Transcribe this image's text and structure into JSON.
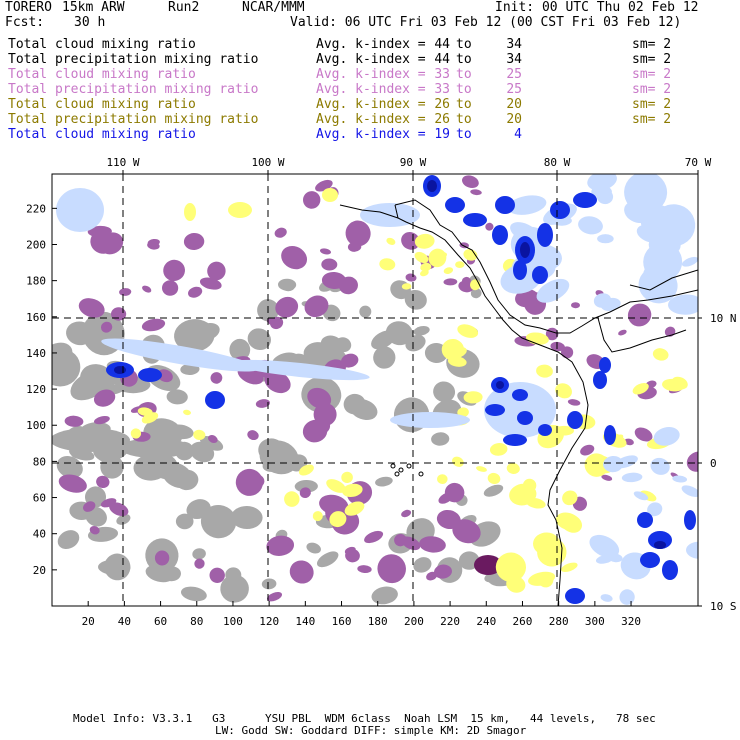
{
  "header": {
    "model": "TORERO",
    "resolution": "15km ARW",
    "run": "Run2",
    "org": "NCAR/MMM",
    "init": "Init: 00 UTC Thu 02 Feb 12",
    "fcst_label": "Fcst:",
    "fcst_value": "30 h",
    "valid": "Valid: 06 UTC Fri 03 Feb 12 (00 CST Fri 03 Feb 12)"
  },
  "legend": [
    {
      "name": "Total cloud mixing ratio",
      "avg_label": "Avg. k-index =",
      "k_hi": "44",
      "to": "to",
      "k_lo": "34",
      "sm": "sm= 2",
      "color": "#000000"
    },
    {
      "name": "Total precipitation mixing ratio",
      "avg_label": "Avg. k-index =",
      "k_hi": "44",
      "to": "to",
      "k_lo": "34",
      "sm": "sm= 2",
      "color": "#000000"
    },
    {
      "name": "Total cloud mixing ratio",
      "avg_label": "Avg. k-index =",
      "k_hi": "33",
      "to": "to",
      "k_lo": "25",
      "sm": "sm= 2",
      "color": "#c878c8"
    },
    {
      "name": "Total precipitation mixing ratio",
      "avg_label": "Avg. k-index =",
      "k_hi": "33",
      "to": "to",
      "k_lo": "25",
      "sm": "sm= 2",
      "color": "#c878c8"
    },
    {
      "name": "Total cloud mixing ratio",
      "avg_label": "Avg. k-index =",
      "k_hi": "26",
      "to": "to",
      "k_lo": "20",
      "sm": "sm= 2",
      "color": "#8c7a00"
    },
    {
      "name": "Total precipitation mixing ratio",
      "avg_label": "Avg. k-index =",
      "k_hi": "26",
      "to": "to",
      "k_lo": "20",
      "sm": "sm= 2",
      "color": "#8c7a00"
    },
    {
      "name": "Total cloud mixing ratio",
      "avg_label": "Avg. k-index =",
      "k_hi": "19",
      "to": "to",
      "k_lo": "4",
      "sm": "",
      "color": "#1414e6"
    }
  ],
  "map": {
    "lon_labels": [
      "110 W",
      "100 W",
      "90 W",
      "80 W",
      "70 W"
    ],
    "lat_labels": [
      "10 N",
      "0",
      "10 S"
    ],
    "x_ticks": [
      "20",
      "40",
      "60",
      "80",
      "100",
      "120",
      "140",
      "160",
      "180",
      "200",
      "220",
      "240",
      "260",
      "280",
      "300",
      "320"
    ],
    "y_ticks": [
      "20",
      "40",
      "60",
      "80",
      "100",
      "120",
      "140",
      "160",
      "180",
      "200",
      "220"
    ],
    "colors": {
      "gray": "#a8a8a8",
      "purple": "#a060a8",
      "yellow": "#ffff78",
      "light_blue": "#c8dcff",
      "blue": "#1432e6",
      "dark_blue": "#0a14a0",
      "coast": "#000000"
    }
  },
  "footer": {
    "line1": "Model Info: V3.3.1   G3      YSU PBL  WDM 6class  Noah LSM  15 km,   44 levels,   78 sec",
    "line2": "LW: Godd SW: Goddard DIFF: simple KM: 2D Smagor"
  }
}
